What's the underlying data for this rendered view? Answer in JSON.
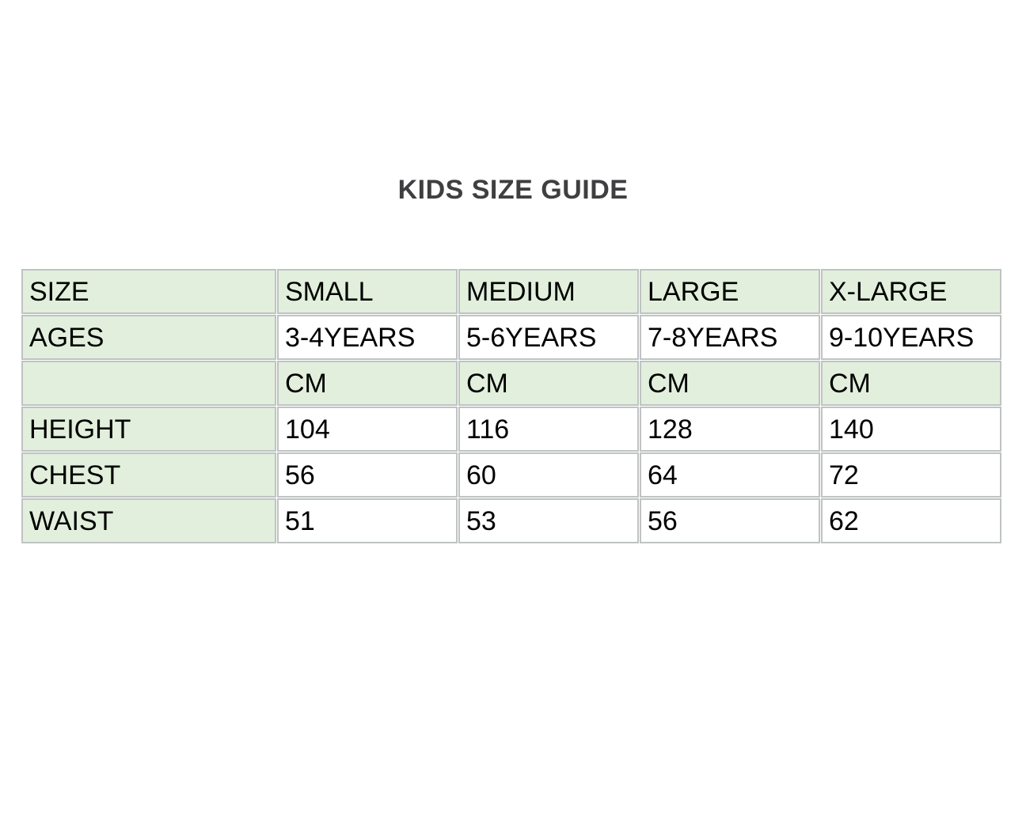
{
  "title": "KIDS SIZE GUIDE",
  "size_table": {
    "corner_label": "SIZE",
    "columns": [
      "SMALL",
      "MEDIUM",
      "LARGE",
      "X-LARGE"
    ],
    "ages": {
      "label": "AGES",
      "values": [
        "3-4YEARS",
        "5-6YEARS",
        "7-8YEARS",
        "9-10YEARS"
      ]
    },
    "unit_label": "CM",
    "measurements": [
      {
        "label": "HEIGHT",
        "values": [
          "104",
          "116",
          "128",
          "140"
        ]
      },
      {
        "label": "CHEST",
        "values": [
          "56",
          "60",
          "64",
          "72"
        ]
      },
      {
        "label": "WAIST",
        "values": [
          "51",
          "53",
          "56",
          "62"
        ]
      }
    ],
    "colors": {
      "cell_green": "#e2efdc",
      "cell_white": "#ffffff",
      "border_gray": "#bfc3c3",
      "title_gray": "#3f3f41",
      "text_black": "#000000"
    }
  }
}
